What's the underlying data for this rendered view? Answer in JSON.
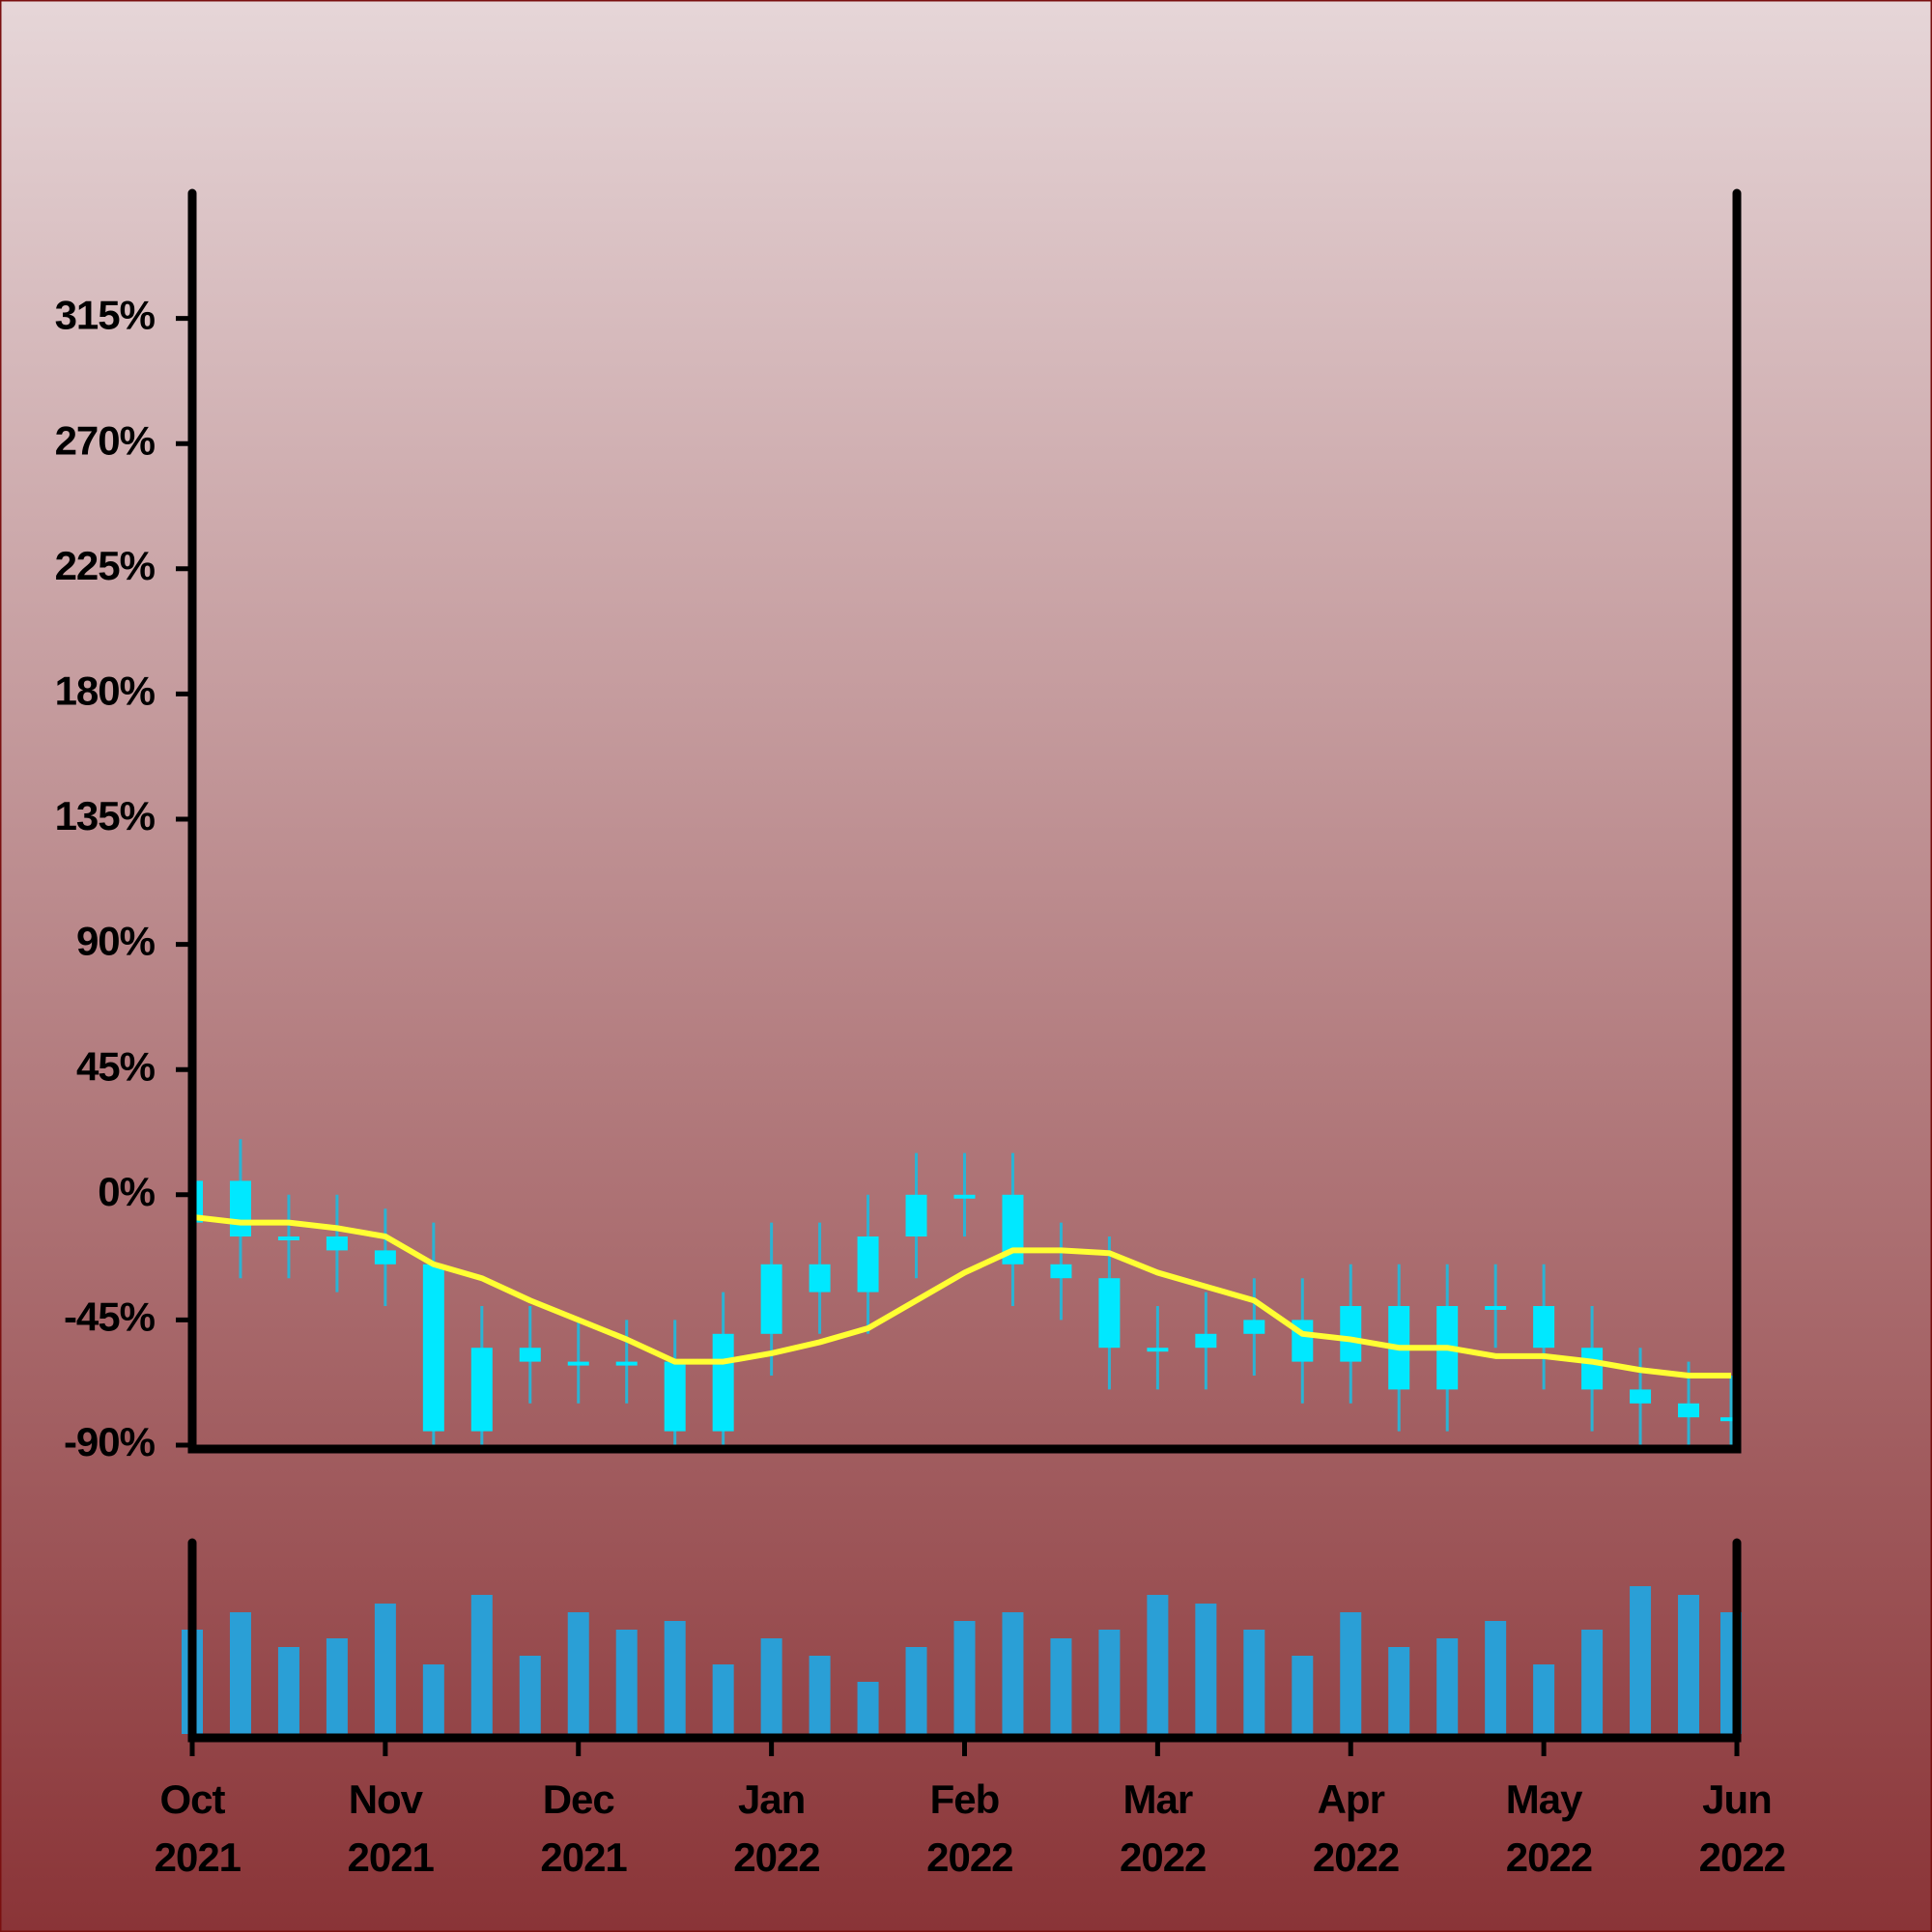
{
  "chart_data": {
    "type": "candlestick",
    "x": [
      0,
      0.25,
      0.5,
      0.75,
      1,
      1.25,
      1.5,
      1.75,
      2,
      2.25,
      2.5,
      2.75,
      3,
      3.25,
      3.5,
      3.75,
      4,
      4.25,
      4.5,
      4.75,
      5,
      5.25,
      5.5,
      5.75,
      6,
      6.25,
      6.5,
      6.75,
      7,
      7.25,
      7.5,
      7.75,
      7.97
    ],
    "open": [
      -10,
      5,
      -15,
      -15,
      -20,
      -25,
      -85,
      -55,
      -60,
      -60,
      -60,
      -85,
      -50,
      -25,
      -35,
      -15,
      0,
      0,
      -25,
      -30,
      -55,
      -55,
      -50,
      -45,
      -60,
      -40,
      -70,
      -40,
      -40,
      -55,
      -70,
      -75,
      -80
    ],
    "high": [
      20,
      20,
      0,
      0,
      -5,
      -10,
      -40,
      -40,
      -45,
      -45,
      -45,
      -35,
      -10,
      -10,
      0,
      15,
      15,
      15,
      -10,
      -15,
      -40,
      -35,
      -30,
      -30,
      -25,
      -25,
      -25,
      -25,
      -25,
      -40,
      -55,
      -60,
      -65
    ],
    "low": [
      -25,
      -30,
      -30,
      -35,
      -40,
      -100,
      -100,
      -75,
      -75,
      -75,
      -100,
      -100,
      -65,
      -50,
      -50,
      -30,
      -15,
      -40,
      -45,
      -70,
      -70,
      -70,
      -65,
      -75,
      -75,
      -85,
      -85,
      -55,
      -70,
      -85,
      -90,
      -95,
      -95
    ],
    "close": [
      5,
      -15,
      -15,
      -20,
      -25,
      -85,
      -55,
      -60,
      -60,
      -60,
      -85,
      -50,
      -25,
      -35,
      -15,
      0,
      0,
      -25,
      -30,
      -55,
      -55,
      -50,
      -45,
      -60,
      -40,
      -70,
      -40,
      -40,
      -55,
      -70,
      -75,
      -80,
      -80
    ],
    "candle_color": "#00e8ff",
    "wick_color": "#2ab4d4",
    "ma": {
      "color": "#ffff33",
      "values": [
        -8,
        -10,
        -10,
        -12,
        -15,
        -25,
        -30,
        -38,
        -45,
        -52,
        -60,
        -60,
        -57,
        -53,
        -48,
        -38,
        -28,
        -20,
        -20,
        -21,
        -28,
        -33,
        -38,
        -50,
        -52,
        -55,
        -55,
        -58,
        -58,
        -60,
        -63,
        -65,
        -65
      ]
    },
    "volume": {
      "color": "#2a9fd6",
      "ylim": [
        0,
        100
      ],
      "values": [
        60,
        70,
        50,
        55,
        75,
        40,
        80,
        45,
        70,
        60,
        65,
        40,
        55,
        45,
        30,
        50,
        65,
        70,
        55,
        60,
        80,
        75,
        60,
        45,
        70,
        50,
        55,
        65,
        40,
        60,
        85,
        80,
        70
      ]
    },
    "xlim": [
      0,
      8
    ],
    "xticks": [
      {
        "value": 0,
        "label": "Oct 2021"
      },
      {
        "value": 1,
        "label": "Nov 2021"
      },
      {
        "value": 2,
        "label": "Dec 2021"
      },
      {
        "value": 3,
        "label": "Jan 2022"
      },
      {
        "value": 4,
        "label": "Feb 2022"
      },
      {
        "value": 5,
        "label": "Mar 2022"
      },
      {
        "value": 6,
        "label": "Apr 2022"
      },
      {
        "value": 7,
        "label": "May 2022"
      },
      {
        "value": 8,
        "label": "Jun 2022"
      }
    ],
    "ylim": [
      -90,
      360
    ],
    "yticks": [
      {
        "value": -90,
        "label": "-90%"
      },
      {
        "value": -45,
        "label": "-45%"
      },
      {
        "value": 0,
        "label": "0%"
      },
      {
        "value": 45,
        "label": "45%"
      },
      {
        "value": 90,
        "label": "90%"
      },
      {
        "value": 135,
        "label": "135%"
      },
      {
        "value": 180,
        "label": "180%"
      },
      {
        "value": 225,
        "label": "225%"
      },
      {
        "value": 270,
        "label": "270%"
      },
      {
        "value": 315,
        "label": "315%"
      }
    ]
  }
}
